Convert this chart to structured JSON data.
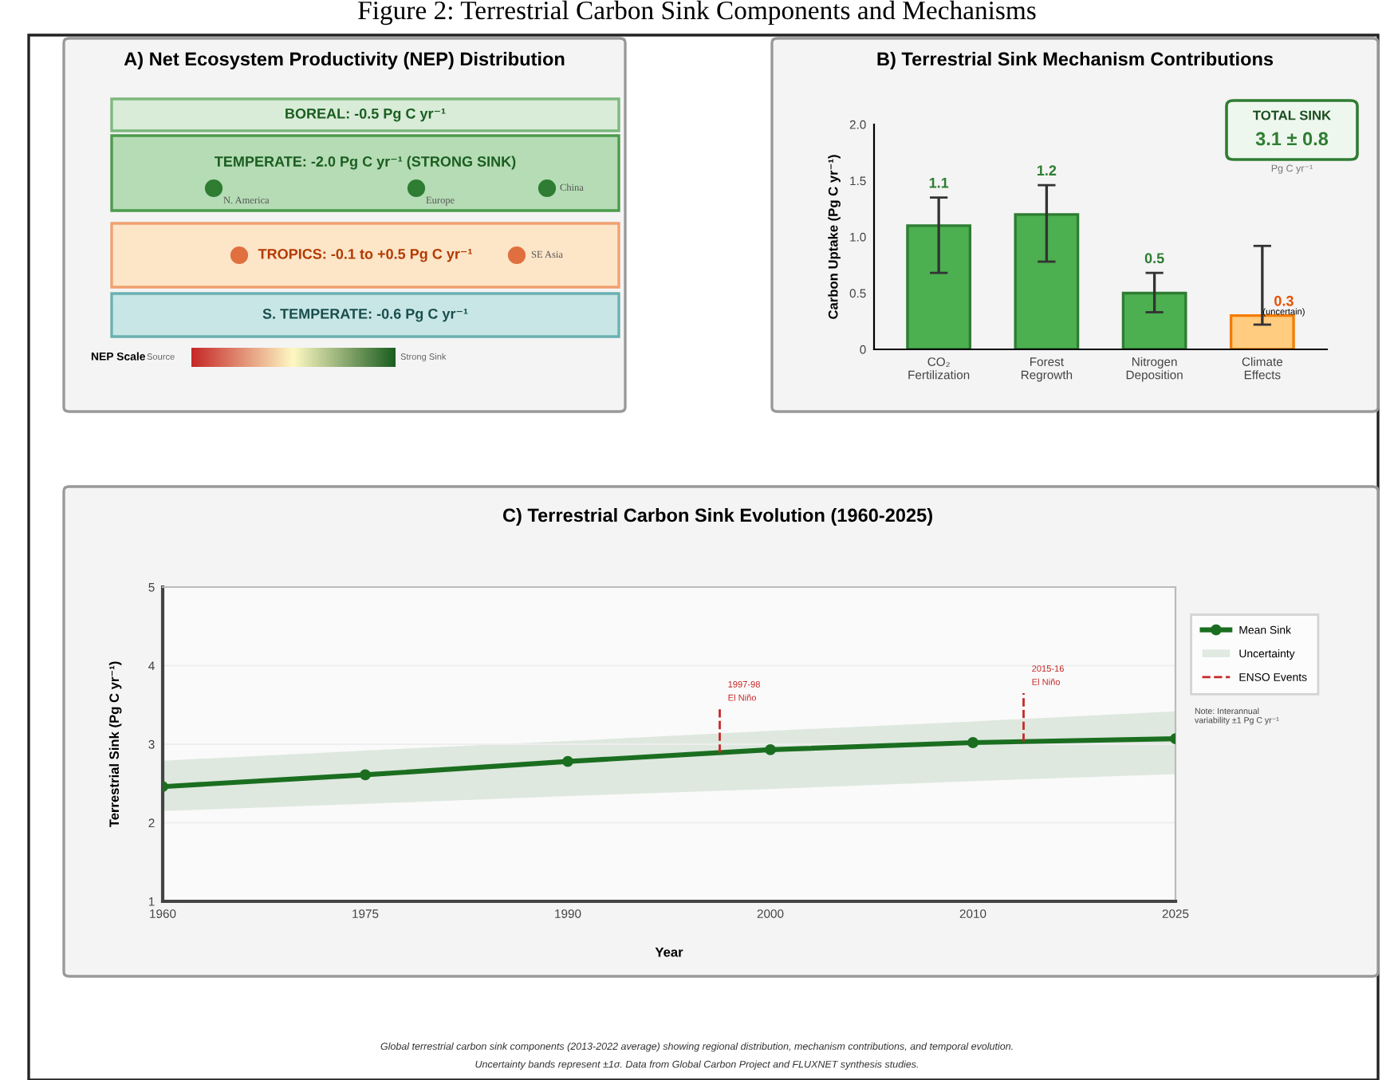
{
  "chart_data": [
    {
      "type": "other",
      "title": "A) Net Ecosystem Productivity (NEP) Distribution",
      "categories": [
        "BOREAL: -0.5 Pg C yr⁻¹",
        "TEMPERATE: -2.0 Pg C yr⁻¹ (STRONG SINK)",
        "TROPICS: -0.1 to +0.5 Pg C yr⁻¹",
        "S. TEMPERATE: -0.6 Pg C yr⁻¹"
      ],
      "colors": [
        "#d8ecd8",
        "#b5dcb5",
        "#fde5c8",
        "#c8e6e6"
      ],
      "annotations": [
        "Figure 2: Terrestrial Carbon Sink Components and Mechanisms",
        "N. America",
        "Europe",
        "China",
        "SE Asia",
        "NEP Scale",
        "Source",
        "Strong Sink"
      ]
    },
    {
      "type": "bar",
      "title": "B) Terrestrial Sink Mechanism Contributions",
      "categories": [
        "CO₂\nFertilization",
        "Forest\nRegrowth",
        "Nitrogen\nDeposition",
        "Climate\nEffects"
      ],
      "values": [
        1.1,
        1.2,
        0.5,
        0.3
      ],
      "colors": [
        "#4caf50",
        "#4caf50",
        "#4caf50",
        "#ffcc80"
      ],
      "errors": [
        [
          0.68,
          1.35
        ],
        [
          0.78,
          1.46
        ],
        [
          0.33,
          0.68
        ],
        [
          0.22,
          0.92
        ]
      ],
      "value_labels": [
        "1.1",
        "1.2",
        "0.5",
        "0.3"
      ],
      "ylabel": "Carbon Uptake (Pg C yr⁻¹)",
      "ylim": [
        0,
        2.0
      ],
      "yticks": [
        0,
        {
          "value": 0.5,
          "label": "0.5"
        },
        {
          "value": 1.0,
          "label": "1.0"
        },
        {
          "value": 1.5,
          "label": "1.5"
        },
        {
          "value": 2.0,
          "label": "2.0"
        }
      ],
      "annotations": [
        "(uncertain)",
        "TOTAL SINK",
        "3.1 ± 0.8",
        "Pg C yr⁻¹"
      ]
    },
    {
      "type": "line",
      "title": "C) Terrestrial Carbon Sink Evolution (1960-2025)",
      "categories": [
        "1960",
        "1975",
        "1990",
        "2000",
        "2010",
        "2025"
      ],
      "series": [
        {
          "name": "Mean Sink",
          "color": "#1b6e20",
          "values": [
            2.46,
            2.61,
            2.78,
            2.93,
            3.02,
            3.07
          ],
          "lower": [
            2.15,
            2.24,
            2.34,
            2.43,
            2.53,
            2.62
          ],
          "upper": [
            2.79,
            2.92,
            3.04,
            3.17,
            3.29,
            3.42
          ]
        }
      ],
      "marker": "circle",
      "xlabel": "Year",
      "ylabel": "Terrestrial Sink (Pg C yr⁻¹)",
      "ylim": [
        1,
        5
      ],
      "yticks": [
        1,
        2,
        3,
        4,
        5
      ],
      "grid": "y",
      "legend": "right",
      "annotations": [
        "Uncertainty",
        "ENSO Events",
        "Note: Interannual\nvariability ±1 Pg C yr⁻¹",
        "Global terrestrial carbon sink components (2013-2022 average) showing regional distribution, mechanism contributions, and temporal evolution.\nUncertainty bands represent ±1σ. Data from Global Carbon Project and FLUXNET synthesis studies.",
        "1997-98\nEl Niño",
        "2015-16\nEl Niño"
      ]
    }
  ]
}
